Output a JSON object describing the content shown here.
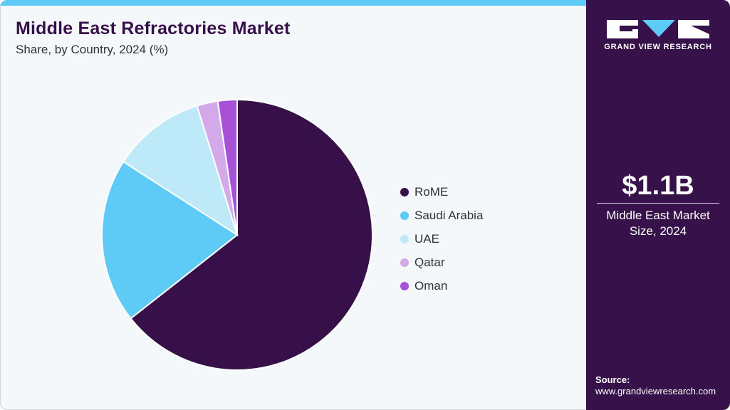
{
  "header": {
    "title": "Middle East Refractories Market",
    "subtitle": "Share, by Country, 2024 (%)"
  },
  "brand": {
    "logo_text": "GRAND VIEW RESEARCH",
    "accent_color": "#5ecbf6",
    "panel_color": "#37114a"
  },
  "summary": {
    "value": "$1.1B",
    "label_line1": "Middle East Market",
    "label_line2": "Size, 2024"
  },
  "source": {
    "title": "Source:",
    "url": "www.grandviewresearch.com"
  },
  "legend": [
    {
      "label": "RoME",
      "color": "#37104a"
    },
    {
      "label": "Saudi Arabia",
      "color": "#5ecbf6"
    },
    {
      "label": "UAE",
      "color": "#bde9f9"
    },
    {
      "label": "Qatar",
      "color": "#d4a9ea"
    },
    {
      "label": "Oman",
      "color": "#a752d6"
    }
  ],
  "chart_data": {
    "type": "pie",
    "title": "Middle East Refractories Market",
    "subtitle": "Share, by Country, 2024 (%)",
    "categories": [
      "RoME",
      "Saudi Arabia",
      "UAE",
      "Qatar",
      "Oman"
    ],
    "values": [
      64.4,
      19.7,
      11.1,
      2.5,
      2.3
    ],
    "colors": [
      "#37104a",
      "#5ecbf6",
      "#bde9f9",
      "#d4a9ea",
      "#a752d6"
    ],
    "start_angle": "12 o'clock, clockwise",
    "legend_position": "right",
    "units": "%"
  }
}
